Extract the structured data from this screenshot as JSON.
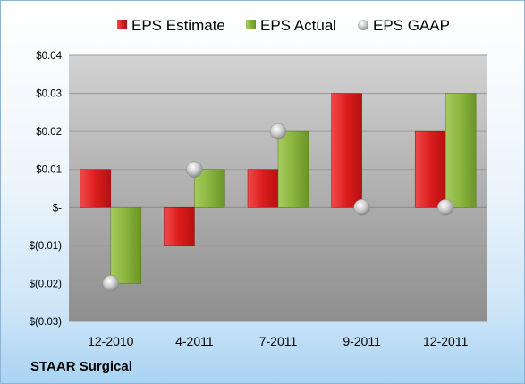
{
  "company": "STAAR Surgical",
  "colors": {
    "estimate": "#e31e25",
    "actual": "#8cb842",
    "gaap": "#c0c0c0"
  },
  "chart_data": {
    "type": "bar",
    "categories": [
      "12-2010",
      "4-2011",
      "7-2011",
      "9-2011",
      "12-2011"
    ],
    "series": [
      {
        "name": "EPS Estimate",
        "type": "bar",
        "values": [
          0.01,
          -0.01,
          0.01,
          0.03,
          0.02
        ]
      },
      {
        "name": "EPS Actual",
        "type": "bar",
        "values": [
          -0.02,
          0.01,
          0.02,
          null,
          0.03
        ]
      },
      {
        "name": "EPS GAAP",
        "type": "scatter",
        "values": [
          -0.02,
          0.01,
          0.02,
          0.0,
          0.0
        ]
      }
    ],
    "yticks": [
      0.04,
      0.03,
      0.02,
      0.01,
      0,
      -0.01,
      -0.02,
      -0.03
    ],
    "ytick_labels": [
      "$0.04",
      "$0.03",
      "$0.02",
      "$0.01",
      "$-",
      "$(0.01)",
      "$(0.02)",
      "$(0.03)"
    ],
    "ylim": [
      -0.03,
      0.04
    ],
    "grid": true,
    "legend": "top"
  }
}
